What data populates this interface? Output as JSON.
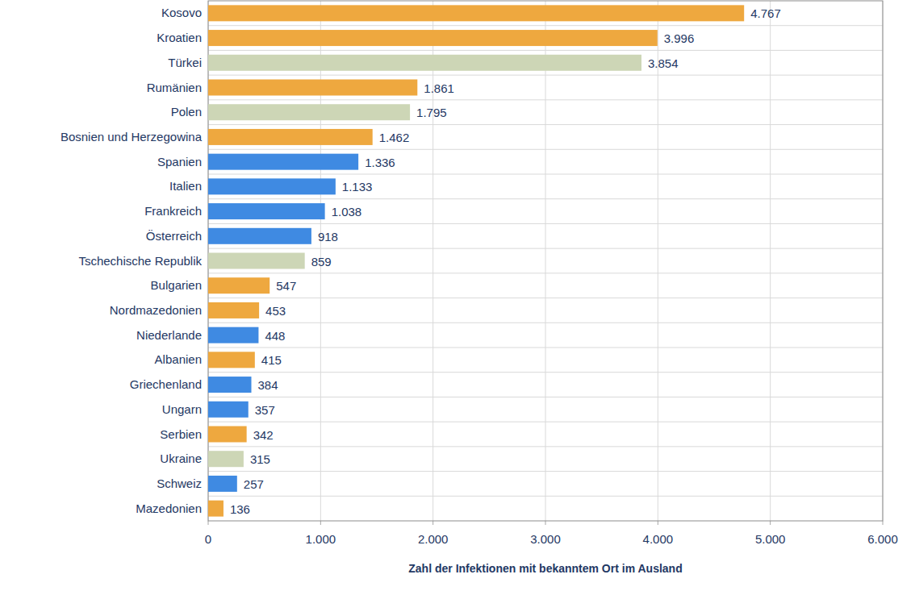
{
  "chart_data": {
    "type": "bar",
    "orientation": "horizontal",
    "categories": [
      "Kosovo",
      "Kroatien",
      "Türkei",
      "Rumänien",
      "Polen",
      "Bosnien und Herzegowina",
      "Spanien",
      "Italien",
      "Frankreich",
      "Österreich",
      "Tschechische Republik",
      "Bulgarien",
      "Nordmazedonien",
      "Niederlande",
      "Albanien",
      "Griechenland",
      "Ungarn",
      "Serbien",
      "Ukraine",
      "Schweiz",
      "Mazedonien"
    ],
    "values": [
      4767,
      3996,
      3854,
      1861,
      1795,
      1462,
      1336,
      1133,
      1038,
      918,
      859,
      547,
      453,
      448,
      415,
      384,
      357,
      342,
      315,
      257,
      136
    ],
    "value_labels": [
      "4.767",
      "3.996",
      "3.854",
      "1.861",
      "1.795",
      "1.462",
      "1.336",
      "1.133",
      "1.038",
      "918",
      "859",
      "547",
      "453",
      "448",
      "415",
      "384",
      "357",
      "342",
      "315",
      "257",
      "136"
    ],
    "colors": [
      "#eea83f",
      "#eea83f",
      "#cdd6b6",
      "#eea83f",
      "#cdd6b6",
      "#eea83f",
      "#3f8ae2",
      "#3f8ae2",
      "#3f8ae2",
      "#3f8ae2",
      "#cdd6b6",
      "#eea83f",
      "#eea83f",
      "#3f8ae2",
      "#eea83f",
      "#3f8ae2",
      "#3f8ae2",
      "#eea83f",
      "#cdd6b6",
      "#3f8ae2",
      "#eea83f"
    ],
    "xlabel": "Zahl der Infektionen mit bekanntem Ort im Ausland",
    "xlim": [
      0,
      6000
    ],
    "xticks": [
      0,
      {
        "value": 1000,
        "label": "1.000"
      },
      {
        "value": 2000,
        "label": "2.000"
      },
      {
        "value": 3000,
        "label": "3.000"
      },
      {
        "value": 4000,
        "label": "4.000"
      },
      {
        "value": 5000,
        "label": "5.000"
      },
      {
        "value": 6000,
        "label": "6.000"
      }
    ],
    "grid": true,
    "data_labels": true
  }
}
